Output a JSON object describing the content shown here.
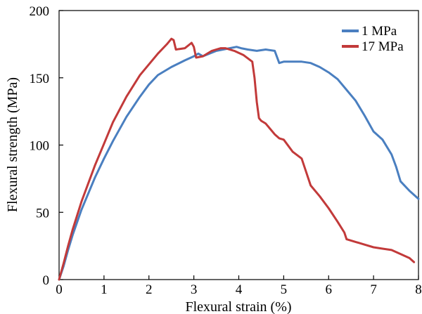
{
  "chart_data": {
    "type": "line",
    "title": "",
    "xlabel": "Flexural strain (%)",
    "ylabel": "Flexural strength (MPa)",
    "xlim": [
      0,
      8
    ],
    "ylim": [
      0,
      200
    ],
    "xticks": [
      0,
      1,
      2,
      3,
      4,
      5,
      6,
      7,
      8
    ],
    "yticks": [
      0,
      50,
      100,
      150,
      200
    ],
    "grid": false,
    "legend_position": "top-right",
    "series": [
      {
        "name": "1 MPa",
        "color": "#4a7fc0",
        "x": [
          0,
          0.1,
          0.2,
          0.3,
          0.5,
          0.8,
          1.0,
          1.2,
          1.5,
          1.8,
          2.0,
          2.2,
          2.5,
          2.8,
          3.0,
          3.1,
          3.2,
          3.5,
          3.8,
          3.95,
          4.05,
          4.2,
          4.4,
          4.6,
          4.8,
          4.9,
          5.0,
          5.2,
          5.4,
          5.6,
          5.8,
          6.0,
          6.2,
          6.4,
          6.6,
          6.8,
          7.0,
          7.2,
          7.4,
          7.5,
          7.6,
          7.8,
          8.0
        ],
        "y": [
          0,
          10,
          22,
          33,
          52,
          76,
          90,
          103,
          121,
          136,
          145,
          152,
          158,
          163,
          166,
          168,
          166,
          170,
          172,
          173,
          172,
          171,
          170,
          171,
          170,
          161,
          162,
          162,
          162,
          161,
          158,
          154,
          149,
          141,
          133,
          122,
          110,
          104,
          93,
          84,
          73,
          66,
          60
        ]
      },
      {
        "name": "17 MPa",
        "color": "#c23a3a",
        "x": [
          0,
          0.1,
          0.2,
          0.3,
          0.5,
          0.8,
          1.0,
          1.2,
          1.5,
          1.8,
          2.0,
          2.2,
          2.4,
          2.5,
          2.55,
          2.6,
          2.8,
          2.95,
          3.0,
          3.05,
          3.2,
          3.4,
          3.6,
          3.7,
          3.9,
          4.1,
          4.3,
          4.35,
          4.4,
          4.45,
          4.5,
          4.6,
          4.8,
          4.9,
          5.0,
          5.2,
          5.4,
          5.5,
          5.6,
          5.8,
          6.0,
          6.2,
          6.35,
          6.4,
          6.6,
          6.8,
          7.0,
          7.2,
          7.4,
          7.6,
          7.8,
          7.9
        ],
        "y": [
          0,
          12,
          25,
          37,
          58,
          85,
          101,
          117,
          136,
          152,
          160,
          168,
          175,
          179,
          178,
          171,
          172,
          176,
          173,
          165,
          166,
          170,
          172,
          172,
          170,
          167,
          162,
          150,
          132,
          120,
          118,
          116,
          108,
          105,
          104,
          95,
          90,
          80,
          70,
          62,
          53,
          43,
          35,
          30,
          28,
          26,
          24,
          23,
          22,
          19,
          16,
          13
        ]
      }
    ]
  }
}
